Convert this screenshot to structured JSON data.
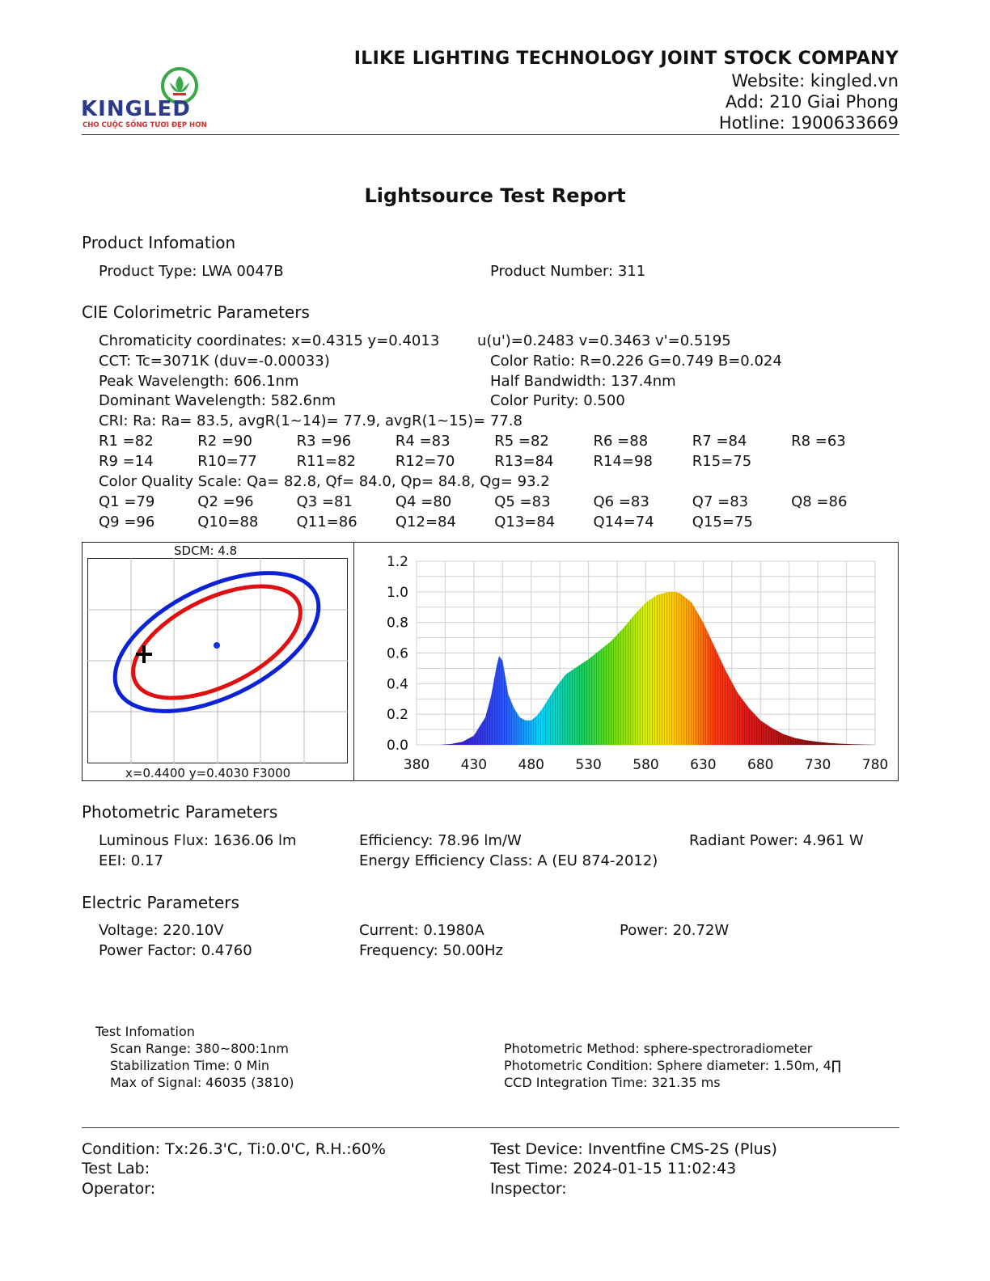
{
  "header": {
    "logo": {
      "brand": "KINGLED",
      "tagline": "CHO CUỘC SỐNG TƯƠI ĐẸP HƠN"
    },
    "company": "ILIKE LIGHTING TECHNOLOGY JOINT STOCK COMPANY",
    "website": "Website: kingled.vn",
    "address": "Add: 210 Giai Phong",
    "hotline": "Hotline: 1900633669"
  },
  "title": "Lightsource Test Report",
  "product": {
    "heading": "Product Infomation",
    "type": "Product Type: LWA 0047B",
    "number": "Product Number: 311"
  },
  "cie": {
    "heading": "CIE Colorimetric Parameters",
    "chromaticity": "Chromaticity coordinates: x=0.4315 y=0.4013",
    "uv": "u(u')=0.2483 v=0.3463 v'=0.5195",
    "cct": "CCT: Tc=3071K (duv=-0.00033)",
    "color_ratio": "Color Ratio: R=0.226  G=0.749  B=0.024",
    "peak": "Peak Wavelength: 606.1nm",
    "half_bw": "Half Bandwidth: 137.4nm",
    "dominant": "Dominant Wavelength: 582.6nm",
    "purity": "Color Purity: 0.500",
    "cri": "CRI: Ra: Ra= 83.5, avgR(1~14)= 77.9, avgR(1~15)= 77.8",
    "r_values": [
      "R1 =82",
      "R2 =90",
      "R3 =96",
      "R4 =83",
      "R5 =82",
      "R6 =88",
      "R7 =84",
      "R8 =63",
      "R9 =14",
      "R10=77",
      "R11=82",
      "R12=70",
      "R13=84",
      "R14=98",
      "R15=75"
    ],
    "cqs": "Color Quality Scale: Qa= 82.8, Qf= 84.0, Qp= 84.8, Qg= 93.2",
    "q_values": [
      "Q1 =79",
      "Q2 =96",
      "Q3 =81",
      "Q4 =80",
      "Q5 =83",
      "Q6 =83",
      "Q7 =83",
      "Q8 =86",
      "Q9 =96",
      "Q10=88",
      "Q11=86",
      "Q12=84",
      "Q13=84",
      "Q14=74",
      "Q15=75"
    ]
  },
  "sdcm_plot": {
    "title": "SDCM:   4.8",
    "footer": "x=0.4400 y=0.4030 F3000",
    "sdcm": 4.8,
    "colors": {
      "outer": "#0b22d6",
      "inner": "#e01010",
      "center": "#1034e0",
      "marker": "#000000"
    }
  },
  "chart_data": {
    "type": "area",
    "xlim": [
      380,
      780
    ],
    "ylim": [
      0.0,
      1.2
    ],
    "xticks": [
      "380",
      "430",
      "480",
      "530",
      "580",
      "630",
      "680",
      "730",
      "780"
    ],
    "yticks": [
      "0.0",
      "0.2",
      "0.4",
      "0.6",
      "0.8",
      "1.0",
      "1.2"
    ],
    "grid": true,
    "x": [
      380,
      400,
      410,
      420,
      430,
      440,
      445,
      450,
      452,
      455,
      458,
      460,
      465,
      470,
      475,
      480,
      485,
      490,
      500,
      510,
      520,
      530,
      540,
      550,
      560,
      570,
      580,
      590,
      600,
      606,
      610,
      620,
      630,
      640,
      650,
      660,
      670,
      680,
      690,
      700,
      710,
      720,
      730,
      740,
      750,
      760,
      770,
      780
    ],
    "y": [
      0.0,
      0.0,
      0.005,
      0.02,
      0.06,
      0.18,
      0.32,
      0.52,
      0.58,
      0.55,
      0.42,
      0.33,
      0.24,
      0.18,
      0.16,
      0.16,
      0.19,
      0.24,
      0.36,
      0.46,
      0.51,
      0.56,
      0.62,
      0.68,
      0.76,
      0.85,
      0.93,
      0.98,
      1.0,
      1.0,
      0.99,
      0.93,
      0.8,
      0.64,
      0.48,
      0.34,
      0.24,
      0.16,
      0.11,
      0.07,
      0.045,
      0.03,
      0.02,
      0.012,
      0.007,
      0.004,
      0.002,
      0.0
    ]
  },
  "photometric": {
    "heading": "Photometric Parameters",
    "flux": "Luminous Flux: 1636.06 lm",
    "efficiency": "Efficiency: 78.96 lm/W",
    "radiant": "Radiant Power: 4.961 W",
    "eei": "EEI:  0.17",
    "eclass": "Energy Efficiency Class: A (EU 874-2012)"
  },
  "electric": {
    "heading": "Electric Parameters",
    "voltage": "Voltage: 220.10V",
    "current": "Current: 0.1980A",
    "power": "Power: 20.72W",
    "pf": "Power Factor: 0.4760",
    "freq": "Frequency: 50.00Hz"
  },
  "test_info": {
    "heading": "Test Infomation",
    "scan": "Scan Range: 380~800:1nm",
    "stab": "Stabilization Time: 0 Min",
    "max_signal": "Max of Signal: 46035 (3810)",
    "method": "Photometric Method: sphere-spectroradiometer",
    "condition": "Photometric Condition: Sphere diameter: 1.50m, 4∏",
    "ccd": "CCD Integration Time: 321.35 ms"
  },
  "footer": {
    "condition": "Condition: Tx:26.3'C, Ti:0.0'C, R.H.:60%",
    "device": "Test Device: Inventfine CMS-2S (Plus)",
    "lab": "Test Lab:",
    "time": "Test Time: 2024-01-15 11:02:43",
    "operator": "Operator:",
    "inspector": "Inspector:"
  }
}
